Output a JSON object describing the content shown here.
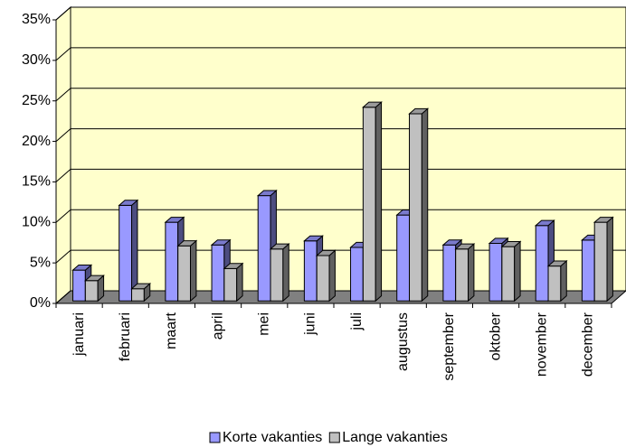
{
  "chart_data": {
    "type": "bar3d",
    "categories": [
      "januari",
      "februari",
      "maart",
      "april",
      "mei",
      "juni",
      "juli",
      "augustus",
      "september",
      "oktober",
      "november",
      "december"
    ],
    "series": [
      {
        "name": "Korte vakanties",
        "color": "#9999ff",
        "values": [
          3.8,
          11.8,
          9.7,
          6.9,
          13.0,
          7.4,
          6.6,
          10.6,
          6.9,
          7.1,
          9.3,
          7.5
        ]
      },
      {
        "name": "Lange vakanties",
        "color": "#c0c0c0",
        "values": [
          2.5,
          1.5,
          6.8,
          4.0,
          6.4,
          5.6,
          23.9,
          23.1,
          6.4,
          6.7,
          4.3,
          9.7
        ]
      }
    ],
    "ylim": [
      0,
      35
    ],
    "yticks": [
      {
        "value": 0,
        "label": "0%"
      },
      {
        "value": 5,
        "label": "5%"
      },
      {
        "value": 10,
        "label": "10%"
      },
      {
        "value": 15,
        "label": "15%"
      },
      {
        "value": 20,
        "label": "20%"
      },
      {
        "value": 25,
        "label": "25%"
      },
      {
        "value": 30,
        "label": "30%"
      },
      {
        "value": 35,
        "label": "35%"
      }
    ],
    "grid": true,
    "legend": "bottom"
  }
}
